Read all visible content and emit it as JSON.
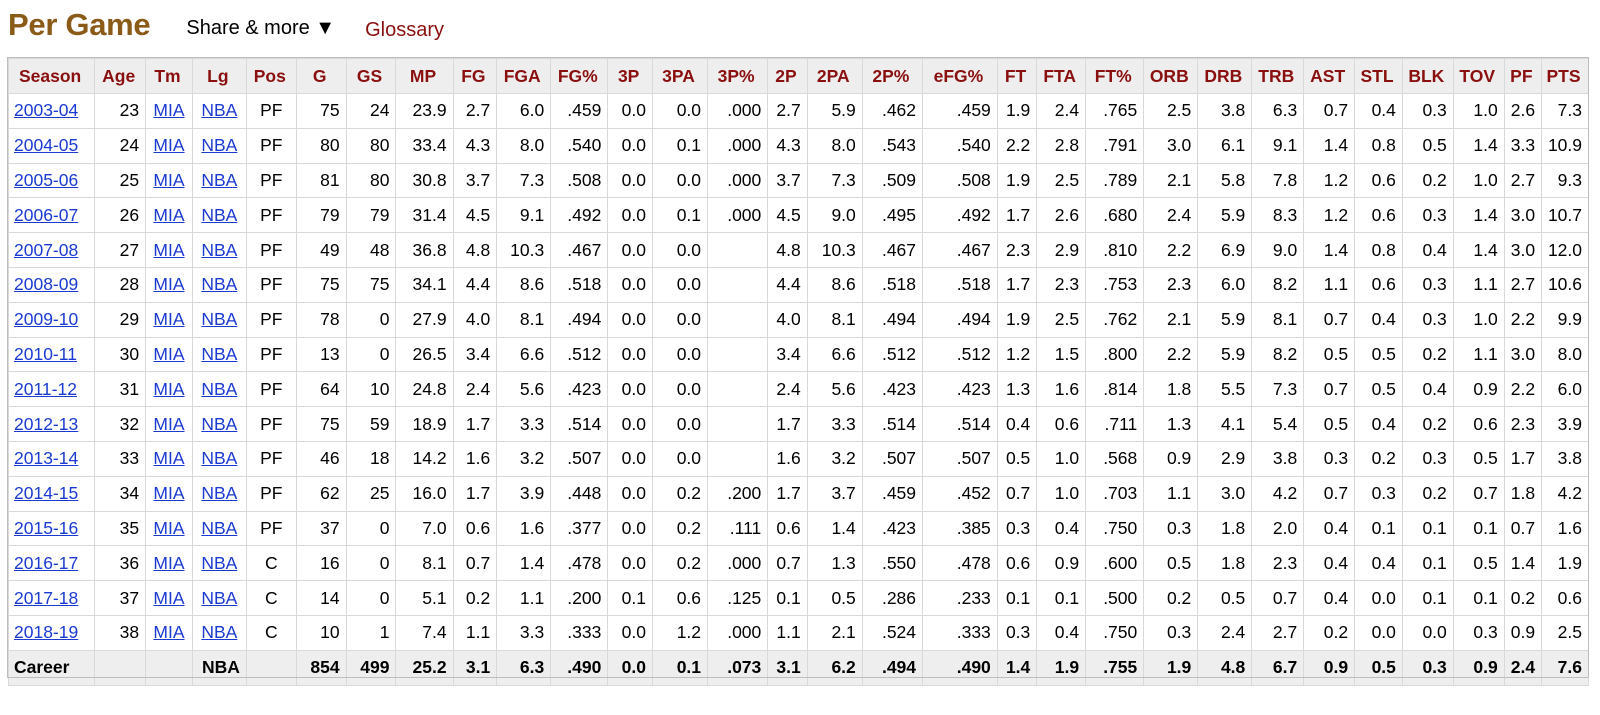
{
  "header": {
    "title": "Per Game",
    "share_label": "Share & more ▼",
    "glossary_label": "Glossary"
  },
  "colors": {
    "title": "#8a5a19",
    "header_text": "#8a0f0f",
    "link": "#1a3ad1",
    "header_bg": "#eeeeee"
  },
  "table": {
    "columns": [
      "Season",
      "Age",
      "Tm",
      "Lg",
      "Pos",
      "G",
      "GS",
      "MP",
      "FG",
      "FGA",
      "FG%",
      "3P",
      "3PA",
      "3P%",
      "2P",
      "2PA",
      "2P%",
      "eFG%",
      "FT",
      "FTA",
      "FT%",
      "ORB",
      "DRB",
      "TRB",
      "AST",
      "STL",
      "BLK",
      "TOV",
      "PF",
      "PTS"
    ],
    "rows": [
      [
        "2003-04",
        "23",
        "MIA",
        "NBA",
        "PF",
        "75",
        "24",
        "23.9",
        "2.7",
        "6.0",
        ".459",
        "0.0",
        "0.0",
        ".000",
        "2.7",
        "5.9",
        ".462",
        ".459",
        "1.9",
        "2.4",
        ".765",
        "2.5",
        "3.8",
        "6.3",
        "0.7",
        "0.4",
        "0.3",
        "1.0",
        "2.6",
        "7.3"
      ],
      [
        "2004-05",
        "24",
        "MIA",
        "NBA",
        "PF",
        "80",
        "80",
        "33.4",
        "4.3",
        "8.0",
        ".540",
        "0.0",
        "0.1",
        ".000",
        "4.3",
        "8.0",
        ".543",
        ".540",
        "2.2",
        "2.8",
        ".791",
        "3.0",
        "6.1",
        "9.1",
        "1.4",
        "0.8",
        "0.5",
        "1.4",
        "3.3",
        "10.9"
      ],
      [
        "2005-06",
        "25",
        "MIA",
        "NBA",
        "PF",
        "81",
        "80",
        "30.8",
        "3.7",
        "7.3",
        ".508",
        "0.0",
        "0.0",
        ".000",
        "3.7",
        "7.3",
        ".509",
        ".508",
        "1.9",
        "2.5",
        ".789",
        "2.1",
        "5.8",
        "7.8",
        "1.2",
        "0.6",
        "0.2",
        "1.0",
        "2.7",
        "9.3"
      ],
      [
        "2006-07",
        "26",
        "MIA",
        "NBA",
        "PF",
        "79",
        "79",
        "31.4",
        "4.5",
        "9.1",
        ".492",
        "0.0",
        "0.1",
        ".000",
        "4.5",
        "9.0",
        ".495",
        ".492",
        "1.7",
        "2.6",
        ".680",
        "2.4",
        "5.9",
        "8.3",
        "1.2",
        "0.6",
        "0.3",
        "1.4",
        "3.0",
        "10.7"
      ],
      [
        "2007-08",
        "27",
        "MIA",
        "NBA",
        "PF",
        "49",
        "48",
        "36.8",
        "4.8",
        "10.3",
        ".467",
        "0.0",
        "0.0",
        "",
        "4.8",
        "10.3",
        ".467",
        ".467",
        "2.3",
        "2.9",
        ".810",
        "2.2",
        "6.9",
        "9.0",
        "1.4",
        "0.8",
        "0.4",
        "1.4",
        "3.0",
        "12.0"
      ],
      [
        "2008-09",
        "28",
        "MIA",
        "NBA",
        "PF",
        "75",
        "75",
        "34.1",
        "4.4",
        "8.6",
        ".518",
        "0.0",
        "0.0",
        "",
        "4.4",
        "8.6",
        ".518",
        ".518",
        "1.7",
        "2.3",
        ".753",
        "2.3",
        "6.0",
        "8.2",
        "1.1",
        "0.6",
        "0.3",
        "1.1",
        "2.7",
        "10.6"
      ],
      [
        "2009-10",
        "29",
        "MIA",
        "NBA",
        "PF",
        "78",
        "0",
        "27.9",
        "4.0",
        "8.1",
        ".494",
        "0.0",
        "0.0",
        "",
        "4.0",
        "8.1",
        ".494",
        ".494",
        "1.9",
        "2.5",
        ".762",
        "2.1",
        "5.9",
        "8.1",
        "0.7",
        "0.4",
        "0.3",
        "1.0",
        "2.2",
        "9.9"
      ],
      [
        "2010-11",
        "30",
        "MIA",
        "NBA",
        "PF",
        "13",
        "0",
        "26.5",
        "3.4",
        "6.6",
        ".512",
        "0.0",
        "0.0",
        "",
        "3.4",
        "6.6",
        ".512",
        ".512",
        "1.2",
        "1.5",
        ".800",
        "2.2",
        "5.9",
        "8.2",
        "0.5",
        "0.5",
        "0.2",
        "1.1",
        "3.0",
        "8.0"
      ],
      [
        "2011-12",
        "31",
        "MIA",
        "NBA",
        "PF",
        "64",
        "10",
        "24.8",
        "2.4",
        "5.6",
        ".423",
        "0.0",
        "0.0",
        "",
        "2.4",
        "5.6",
        ".423",
        ".423",
        "1.3",
        "1.6",
        ".814",
        "1.8",
        "5.5",
        "7.3",
        "0.7",
        "0.5",
        "0.4",
        "0.9",
        "2.2",
        "6.0"
      ],
      [
        "2012-13",
        "32",
        "MIA",
        "NBA",
        "PF",
        "75",
        "59",
        "18.9",
        "1.7",
        "3.3",
        ".514",
        "0.0",
        "0.0",
        "",
        "1.7",
        "3.3",
        ".514",
        ".514",
        "0.4",
        "0.6",
        ".711",
        "1.3",
        "4.1",
        "5.4",
        "0.5",
        "0.4",
        "0.2",
        "0.6",
        "2.3",
        "3.9"
      ],
      [
        "2013-14",
        "33",
        "MIA",
        "NBA",
        "PF",
        "46",
        "18",
        "14.2",
        "1.6",
        "3.2",
        ".507",
        "0.0",
        "0.0",
        "",
        "1.6",
        "3.2",
        ".507",
        ".507",
        "0.5",
        "1.0",
        ".568",
        "0.9",
        "2.9",
        "3.8",
        "0.3",
        "0.2",
        "0.3",
        "0.5",
        "1.7",
        "3.8"
      ],
      [
        "2014-15",
        "34",
        "MIA",
        "NBA",
        "PF",
        "62",
        "25",
        "16.0",
        "1.7",
        "3.9",
        ".448",
        "0.0",
        "0.2",
        ".200",
        "1.7",
        "3.7",
        ".459",
        ".452",
        "0.7",
        "1.0",
        ".703",
        "1.1",
        "3.0",
        "4.2",
        "0.7",
        "0.3",
        "0.2",
        "0.7",
        "1.8",
        "4.2"
      ],
      [
        "2015-16",
        "35",
        "MIA",
        "NBA",
        "PF",
        "37",
        "0",
        "7.0",
        "0.6",
        "1.6",
        ".377",
        "0.0",
        "0.2",
        ".111",
        "0.6",
        "1.4",
        ".423",
        ".385",
        "0.3",
        "0.4",
        ".750",
        "0.3",
        "1.8",
        "2.0",
        "0.4",
        "0.1",
        "0.1",
        "0.1",
        "0.7",
        "1.6"
      ],
      [
        "2016-17",
        "36",
        "MIA",
        "NBA",
        "C",
        "16",
        "0",
        "8.1",
        "0.7",
        "1.4",
        ".478",
        "0.0",
        "0.2",
        ".000",
        "0.7",
        "1.3",
        ".550",
        ".478",
        "0.6",
        "0.9",
        ".600",
        "0.5",
        "1.8",
        "2.3",
        "0.4",
        "0.4",
        "0.1",
        "0.5",
        "1.4",
        "1.9"
      ],
      [
        "2017-18",
        "37",
        "MIA",
        "NBA",
        "C",
        "14",
        "0",
        "5.1",
        "0.2",
        "1.1",
        ".200",
        "0.1",
        "0.6",
        ".125",
        "0.1",
        "0.5",
        ".286",
        ".233",
        "0.1",
        "0.1",
        ".500",
        "0.2",
        "0.5",
        "0.7",
        "0.4",
        "0.0",
        "0.1",
        "0.1",
        "0.2",
        "0.6"
      ],
      [
        "2018-19",
        "38",
        "MIA",
        "NBA",
        "C",
        "10",
        "1",
        "7.4",
        "1.1",
        "3.3",
        ".333",
        "0.0",
        "1.2",
        ".000",
        "1.1",
        "2.1",
        ".524",
        ".333",
        "0.3",
        "0.4",
        ".750",
        "0.3",
        "2.4",
        "2.7",
        "0.2",
        "0.0",
        "0.0",
        "0.3",
        "0.9",
        "2.5"
      ]
    ],
    "footer": [
      "Career",
      "",
      "",
      "NBA",
      "",
      "854",
      "499",
      "25.2",
      "3.1",
      "6.3",
      ".490",
      "0.0",
      "0.1",
      ".073",
      "3.1",
      "6.2",
      ".494",
      ".490",
      "1.4",
      "1.9",
      ".755",
      "1.9",
      "4.8",
      "6.7",
      "0.9",
      "0.5",
      "0.3",
      "0.9",
      "2.4",
      "7.6"
    ]
  }
}
